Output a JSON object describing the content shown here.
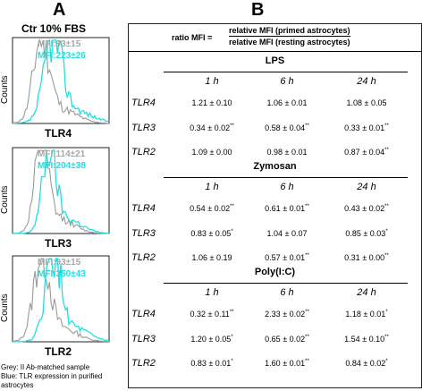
{
  "panel_a": {
    "letter": "A",
    "title": "Ctr 10% FBS",
    "y_axis_label": "Counts",
    "histograms": [
      {
        "receptor": "TLR4",
        "grey_mfi": "MFI:93±15",
        "cyan_mfi": "MFI:223±26"
      },
      {
        "receptor": "TLR3",
        "grey_mfi": "MFI:114±21",
        "cyan_mfi": "MFI:204±38"
      },
      {
        "receptor": "TLR2",
        "grey_mfi": "MFI:93±15",
        "cyan_mfi": "MFI:350±43"
      }
    ],
    "legend_grey": "Grey: II Ab-matched sample",
    "legend_blue": "Blue: TLR expression in purified astrocytes"
  },
  "panel_b": {
    "letter": "B",
    "formula": {
      "lhs": "ratio MFI =",
      "numerator": "relative MFI (primed astrocytes)",
      "denominator": "relative MFI (resting astrocytes)"
    },
    "time_headers": [
      "1 h",
      "6 h",
      "24 h"
    ],
    "sections": [
      {
        "name": "LPS",
        "rows": [
          {
            "label": "TLR4",
            "cells": [
              {
                "v": "1.21 ± 0.10",
                "s": ""
              },
              {
                "v": "1.06 ± 0.01",
                "s": ""
              },
              {
                "v": "1.08 ± 0.05",
                "s": ""
              }
            ]
          },
          {
            "label": "TLR3",
            "cells": [
              {
                "v": "0.34 ± 0.02",
                "s": "**"
              },
              {
                "v": "0.58 ± 0.04",
                "s": "**"
              },
              {
                "v": "0.33 ± 0.01",
                "s": "**"
              }
            ]
          },
          {
            "label": "TLR2",
            "cells": [
              {
                "v": "1.09 ± 0.00",
                "s": ""
              },
              {
                "v": "0.98 ± 0.01",
                "s": ""
              },
              {
                "v": "0.87 ± 0.04",
                "s": "**"
              }
            ]
          }
        ]
      },
      {
        "name": "Zymosan",
        "rows": [
          {
            "label": "TLR4",
            "cells": [
              {
                "v": "0.54 ± 0.02",
                "s": "**"
              },
              {
                "v": "0.61 ± 0.01",
                "s": "**"
              },
              {
                "v": "0.43 ± 0.02",
                "s": "**"
              }
            ]
          },
          {
            "label": "TLR3",
            "cells": [
              {
                "v": "0.83 ± 0.05",
                "s": "*"
              },
              {
                "v": "1.04 ± 0.07",
                "s": ""
              },
              {
                "v": "0.85 ± 0.03",
                "s": "*"
              }
            ]
          },
          {
            "label": "TLR2",
            "cells": [
              {
                "v": "1.06 ± 0.19",
                "s": ""
              },
              {
                "v": "0.57 ± 0.01",
                "s": "**"
              },
              {
                "v": "0.31 ± 0.00",
                "s": "**"
              }
            ]
          }
        ]
      },
      {
        "name": "Poly(I:C)",
        "rows": [
          {
            "label": "TLR4",
            "cells": [
              {
                "v": "0.32 ± 0.11",
                "s": "**"
              },
              {
                "v": "2.33 ± 0.02",
                "s": "**"
              },
              {
                "v": "1.18 ± 0.01",
                "s": "*"
              }
            ]
          },
          {
            "label": "TLR3",
            "cells": [
              {
                "v": "1.20 ± 0.05",
                "s": "*"
              },
              {
                "v": "0.65 ± 0.02",
                "s": "**"
              },
              {
                "v": "1.54 ± 0.10",
                "s": "**"
              }
            ]
          },
          {
            "label": "TLR2",
            "cells": [
              {
                "v": "0.83 ± 0.01",
                "s": "*"
              },
              {
                "v": "1.60 ± 0.01",
                "s": "**"
              },
              {
                "v": "0.84 ± 0.02",
                "s": "*"
              }
            ]
          }
        ]
      }
    ]
  },
  "colors": {
    "grey_trace": "#9a9a9a",
    "cyan_trace": "#1fe0e0"
  }
}
